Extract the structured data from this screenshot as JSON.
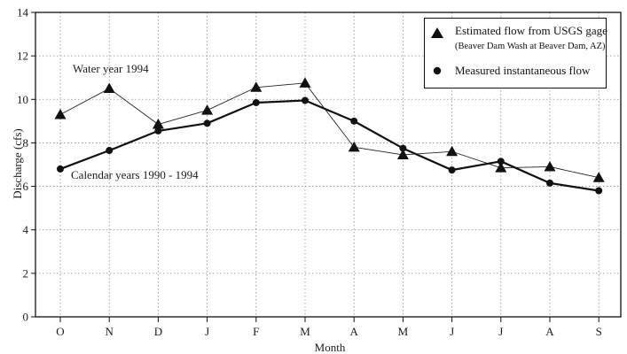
{
  "chart_data": {
    "type": "line",
    "xlabel": "Month",
    "ylabel": "Discharge (cfs)",
    "categories": [
      "O",
      "N",
      "D",
      "J",
      "F",
      "M",
      "A",
      "M",
      "J",
      "J",
      "A",
      "S"
    ],
    "ylim": [
      0,
      14
    ],
    "yticks": [
      0,
      2,
      4,
      6,
      8,
      10,
      12,
      14
    ],
    "grid": true,
    "legend_position": "top-right",
    "series": [
      {
        "name": "Estimated flow from USGS gage",
        "name_sub": "(Beaver Dam Wash at Beaver Dam, AZ)",
        "marker": "triangle",
        "line_style": "thin",
        "color": "#222222",
        "values": [
          9.3,
          10.5,
          8.85,
          9.5,
          10.55,
          10.75,
          7.8,
          7.45,
          7.6,
          6.85,
          6.9,
          6.4
        ]
      },
      {
        "name": "Measured instantaneous flow",
        "marker": "circle",
        "line_style": "thick",
        "color": "#111111",
        "values": [
          6.8,
          7.65,
          8.55,
          8.9,
          9.85,
          9.95,
          9.0,
          7.75,
          6.75,
          7.15,
          6.15,
          5.8
        ]
      }
    ],
    "annotations": [
      {
        "text": "Water year 1994",
        "series": 0
      },
      {
        "text": "Calendar years 1990 - 1994",
        "series": 1
      }
    ]
  }
}
